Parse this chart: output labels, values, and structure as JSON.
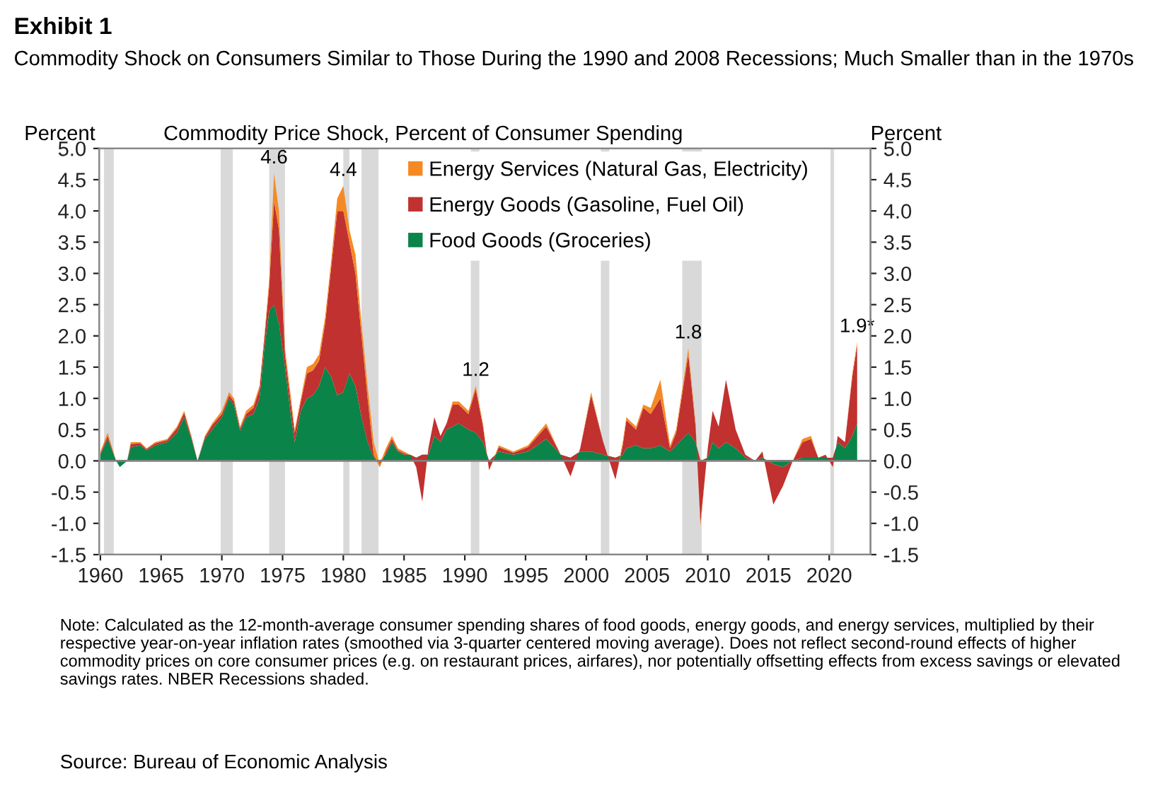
{
  "chart_data": {
    "type": "area",
    "stacked": true,
    "title": "Exhibit 1",
    "subtitle": "Commodity Shock on Consumers Similar to Those During the 1990 and 2008 Recessions; Much Smaller than in the 1970s",
    "ylabel": "Percent",
    "y2label": "Percent",
    "x": [
      1960.0,
      1960.6,
      1961.3,
      1961.6,
      1962.2,
      1962.5,
      1963.3,
      1963.8,
      1964.5,
      1965.5,
      1966.3,
      1966.9,
      1967.5,
      1968.0,
      1968.6,
      1969.2,
      1970.0,
      1970.6,
      1971.0,
      1971.5,
      1972.0,
      1972.6,
      1973.1,
      1973.5,
      1973.9,
      1974.3,
      1974.7,
      1975.2,
      1975.7,
      1976.0,
      1976.5,
      1977.0,
      1977.5,
      1978.0,
      1978.5,
      1979.0,
      1979.5,
      1980.0,
      1980.5,
      1981.0,
      1981.5,
      1982.0,
      1982.5,
      1983.0,
      1983.5,
      1984.0,
      1984.5,
      1985.0,
      1985.5,
      1986.0,
      1986.5,
      1987.0,
      1987.5,
      1988.0,
      1988.5,
      1989.0,
      1989.5,
      1990.3,
      1990.9,
      1991.5,
      1992.0,
      1992.8,
      1994.0,
      1995.2,
      1996.7,
      1997.9,
      1998.7,
      1999.5,
      2000.4,
      2001.4,
      2002.4,
      2003.0,
      2003.3,
      2004.1,
      2004.7,
      2005.3,
      2006.1,
      2006.9,
      2007.4,
      2008.4,
      2009.0,
      2009.4,
      2010.0,
      2010.4,
      2010.9,
      2011.5,
      2012.3,
      2013.1,
      2013.9,
      2014.5,
      2015.4,
      2016.2,
      2017.0,
      2017.8,
      2018.5,
      2019.1,
      2019.7,
      2020.3,
      2020.7,
      2021.3,
      2021.9,
      2022.3
    ],
    "series": [
      {
        "name": "Food Goods (Groceries)",
        "color": "#0a8449",
        "values": [
          0.1,
          0.35,
          0.0,
          -0.1,
          0.0,
          0.22,
          0.25,
          0.17,
          0.25,
          0.3,
          0.45,
          0.7,
          0.35,
          0.0,
          0.35,
          0.5,
          0.7,
          1.0,
          0.9,
          0.48,
          0.7,
          0.75,
          1.0,
          1.8,
          2.4,
          2.5,
          2.2,
          1.5,
          0.7,
          0.3,
          0.8,
          1.0,
          1.05,
          1.2,
          1.5,
          1.35,
          1.05,
          1.1,
          1.4,
          1.2,
          0.7,
          0.3,
          0.05,
          0.0,
          0.1,
          0.3,
          0.15,
          0.1,
          0.1,
          0.05,
          0.1,
          0.1,
          0.4,
          0.3,
          0.5,
          0.55,
          0.6,
          0.5,
          0.45,
          0.3,
          0.0,
          0.15,
          0.1,
          0.15,
          0.35,
          0.1,
          0.05,
          0.15,
          0.15,
          0.1,
          0.05,
          0.1,
          0.2,
          0.25,
          0.2,
          0.2,
          0.25,
          0.15,
          0.25,
          0.45,
          0.3,
          0.0,
          0.05,
          0.3,
          0.2,
          0.3,
          0.2,
          0.05,
          0.0,
          0.05,
          -0.05,
          -0.1,
          0.0,
          0.05,
          0.05,
          0.05,
          0.05,
          0.05,
          0.3,
          0.2,
          0.4,
          0.6
        ]
      },
      {
        "name": "Energy Goods (Gasoline, Fuel Oil)",
        "color": "#c0312f",
        "values": [
          0.02,
          0.05,
          0.0,
          0.0,
          0.0,
          0.05,
          0.03,
          0.02,
          0.03,
          0.03,
          0.07,
          0.07,
          0.03,
          0.0,
          0.03,
          0.07,
          0.05,
          0.05,
          0.05,
          0.04,
          0.05,
          0.1,
          0.15,
          0.15,
          0.4,
          1.65,
          1.5,
          0.2,
          0.2,
          0.15,
          0.15,
          0.4,
          0.4,
          0.4,
          0.7,
          1.75,
          2.95,
          2.9,
          2.1,
          1.8,
          1.3,
          0.7,
          0.05,
          -0.1,
          0.05,
          0.05,
          0.02,
          0.02,
          0.0,
          -0.15,
          -0.75,
          0.1,
          0.3,
          0.1,
          0.1,
          0.35,
          0.3,
          0.25,
          0.7,
          0.25,
          -0.15,
          0.07,
          0.03,
          0.07,
          0.2,
          0.0,
          -0.3,
          0.05,
          0.9,
          0.2,
          -0.35,
          0.15,
          0.45,
          0.25,
          0.65,
          0.55,
          0.75,
          0.05,
          0.2,
          1.25,
          0.25,
          -1.0,
          0.15,
          0.5,
          0.35,
          1.0,
          0.3,
          0.05,
          0.0,
          0.1,
          -0.65,
          -0.3,
          0.0,
          0.25,
          0.3,
          0.0,
          0.05,
          -0.15,
          0.1,
          0.1,
          0.95,
          1.25
        ]
      },
      {
        "name": "Energy Services (Natural Gas, Electricity)",
        "color": "#f58a25",
        "values": [
          0.03,
          0.05,
          0.0,
          0.0,
          0.0,
          0.03,
          0.02,
          0.01,
          0.02,
          0.02,
          0.03,
          0.03,
          0.02,
          0.0,
          0.02,
          0.03,
          0.05,
          0.05,
          0.05,
          0.03,
          0.05,
          0.05,
          0.05,
          0.05,
          0.1,
          0.45,
          0.3,
          0.1,
          0.1,
          0.05,
          0.05,
          0.1,
          0.1,
          0.1,
          0.1,
          0.1,
          0.2,
          0.4,
          0.2,
          0.3,
          0.2,
          0.2,
          0.2,
          0.05,
          0.05,
          0.05,
          0.03,
          0.03,
          0.0,
          0.0,
          0.0,
          0.0,
          0.0,
          0.0,
          0.0,
          0.05,
          0.05,
          0.05,
          0.05,
          0.05,
          0.0,
          0.03,
          0.02,
          0.03,
          0.05,
          0.0,
          0.0,
          0.0,
          0.05,
          0.0,
          0.0,
          0.05,
          0.05,
          0.05,
          0.05,
          0.1,
          0.3,
          0.05,
          0.05,
          0.1,
          0.05,
          -0.05,
          0.0,
          0.0,
          0.0,
          0.0,
          0.0,
          0.0,
          0.0,
          0.0,
          0.0,
          0.0,
          0.0,
          0.05,
          0.05,
          0.0,
          0.0,
          0.0,
          0.0,
          0.0,
          0.05,
          0.05
        ]
      }
    ],
    "xlim": [
      1959.9,
      2023.4
    ],
    "xticks": [
      1960,
      1965,
      1970,
      1975,
      1980,
      1985,
      1990,
      1995,
      2000,
      2005,
      2010,
      2015,
      2020
    ],
    "ylim": [
      -1.5,
      5.0
    ],
    "yticks": [
      {
        "value": 5.0,
        "label": "5.0"
      },
      {
        "value": 4.5,
        "label": "4.5"
      },
      {
        "value": 4.0,
        "label": "4.0"
      },
      {
        "value": 3.5,
        "label": "3.5"
      },
      {
        "value": 3.0,
        "label": "3.0"
      },
      {
        "value": 2.5,
        "label": "2.5"
      },
      {
        "value": 2.0,
        "label": "2.0"
      },
      {
        "value": 1.5,
        "label": "1.5"
      },
      {
        "value": 1.0,
        "label": "1.0"
      },
      {
        "value": 0.5,
        "label": "0.5"
      },
      {
        "value": 0.0,
        "label": "0.0"
      },
      {
        "value": -0.5,
        "label": "-0.5"
      },
      {
        "value": -1.0,
        "label": "-1.0"
      },
      {
        "value": -1.5,
        "label": "-1.5"
      }
    ],
    "y2lim": [
      -1.5,
      5.0
    ],
    "y2ticks": [
      {
        "value": 5.0,
        "label": "5.0"
      },
      {
        "value": 4.5,
        "label": "4.5"
      },
      {
        "value": 4.0,
        "label": "4.0"
      },
      {
        "value": 3.5,
        "label": "3.5"
      },
      {
        "value": 3.0,
        "label": "3.0"
      },
      {
        "value": 2.5,
        "label": "2.5"
      },
      {
        "value": 2.0,
        "label": "2.0"
      },
      {
        "value": 1.5,
        "label": "1.5"
      },
      {
        "value": 1.0,
        "label": "1.0"
      },
      {
        "value": 0.5,
        "label": "0.5"
      },
      {
        "value": 0.0,
        "label": "0.0"
      },
      {
        "value": -0.5,
        "label": "-0.5"
      },
      {
        "value": -1.0,
        "label": "-1.0"
      },
      {
        "value": -1.5,
        "label": "-1.5"
      }
    ],
    "bands": [
      {
        "axis": "x",
        "from": 1960.3,
        "to": 1961.1,
        "color": "#d9d9d9"
      },
      {
        "axis": "x",
        "from": 1969.9,
        "to": 1970.9,
        "color": "#d9d9d9"
      },
      {
        "axis": "x",
        "from": 1973.9,
        "to": 1975.2,
        "color": "#d9d9d9"
      },
      {
        "axis": "x",
        "from": 1980.0,
        "to": 1980.5,
        "color": "#d9d9d9"
      },
      {
        "axis": "x",
        "from": 1981.5,
        "to": 1982.9,
        "color": "#d9d9d9"
      },
      {
        "axis": "x",
        "from": 1990.5,
        "to": 1991.2,
        "color": "#d9d9d9"
      },
      {
        "axis": "x",
        "from": 2001.2,
        "to": 2001.9,
        "color": "#d9d9d9"
      },
      {
        "axis": "x",
        "from": 2007.9,
        "to": 2009.5,
        "color": "#d9d9d9"
      },
      {
        "axis": "x",
        "from": 2020.1,
        "to": 2020.4,
        "color": "#d9d9d9"
      }
    ],
    "ref_lines": [
      {
        "axis": "y",
        "value": 0.0,
        "color": "#808080"
      }
    ],
    "annotations": [
      "Commodity Price Shock, Percent of Consumer Spending",
      {
        "text": "4.6",
        "x": 1974.3,
        "y": 4.6
      },
      {
        "text": "4.4",
        "x": 1980.0,
        "y": 4.4
      },
      {
        "text": "1.2",
        "x": 1990.9,
        "y": 1.2
      },
      {
        "text": "1.8",
        "x": 2008.4,
        "y": 1.8
      },
      {
        "text": "1.9*",
        "x": 2022.3,
        "y": 1.9
      },
      "Note: Calculated as the 12-month-average consumer spending shares of food goods, energy goods, and energy services, multiplied by their respective year-on-year inflation rates (smoothed via 3-quarter centered moving average). Does not reflect second-round effects of higher commodity prices on core consumer prices (e.g. on restaurant prices, airfares), nor potentially offsetting effects from excess savings or elevated savings rates. NBER Recessions shaded.",
      "Source: Bureau of Economic Analysis"
    ],
    "legend": "top",
    "grid": false
  }
}
